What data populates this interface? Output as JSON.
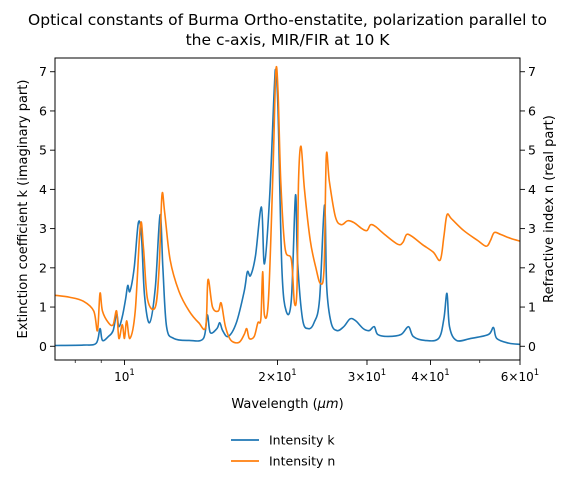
{
  "chart_data": {
    "type": "line",
    "title": "Optical constants of Burma Ortho-enstatite, polarization parallel to the c-axis, MIR/FIR at 10 K",
    "title_lines": [
      "Optical constants of Burma Ortho-enstatite, polarization parallel to",
      "the c-axis, MIR/FIR at 10 K"
    ],
    "xlabel": "Wavelength (μm)",
    "xlabel_base": "Wavelength (",
    "xlabel_mu": "μm",
    "xlabel_close": ")",
    "ylabel_left": "Extinction coefficient k (imaginary part)",
    "ylabel_right": "Refractive index n (real part)",
    "x_scale": "log",
    "xlim": [
      7.3,
      60
    ],
    "ylim_left": [
      -0.35,
      7.35
    ],
    "ylim_right": [
      -0.35,
      7.35
    ],
    "x_ticks": [
      {
        "value": 10,
        "base": "10",
        "exp": "1",
        "mant": ""
      },
      {
        "value": 20,
        "base": "10",
        "exp": "1",
        "mant": "2×"
      },
      {
        "value": 30,
        "base": "10",
        "exp": "1",
        "mant": "3×"
      },
      {
        "value": 40,
        "base": "10",
        "exp": "1",
        "mant": "4×"
      },
      {
        "value": 60,
        "base": "10",
        "exp": "1",
        "mant": "6×"
      }
    ],
    "x_minor_ticks": [
      8,
      9,
      50
    ],
    "y_ticks_left": [
      0,
      1,
      2,
      3,
      4,
      5,
      6,
      7
    ],
    "y_ticks_right": [
      0,
      1,
      2,
      3,
      4,
      5,
      6,
      7
    ],
    "grid": false,
    "legend_placement": "bottom-center below axes",
    "series": [
      {
        "name": "Intensity k",
        "color": "#1f77b4",
        "axis": "left",
        "points": [
          [
            7.3,
            0.02
          ],
          [
            8.3,
            0.03
          ],
          [
            8.8,
            0.08
          ],
          [
            8.95,
            0.45
          ],
          [
            9.05,
            0.15
          ],
          [
            9.3,
            0.25
          ],
          [
            9.5,
            0.4
          ],
          [
            9.65,
            0.82
          ],
          [
            9.75,
            0.5
          ],
          [
            9.9,
            0.75
          ],
          [
            10.05,
            1.2
          ],
          [
            10.15,
            1.55
          ],
          [
            10.25,
            1.4
          ],
          [
            10.45,
            2.0
          ],
          [
            10.65,
            3.15
          ],
          [
            10.8,
            2.8
          ],
          [
            10.95,
            1.3
          ],
          [
            11.2,
            0.6
          ],
          [
            11.5,
            1.5
          ],
          [
            11.75,
            3.35
          ],
          [
            11.9,
            2.0
          ],
          [
            12.1,
            0.5
          ],
          [
            12.5,
            0.2
          ],
          [
            13.4,
            0.15
          ],
          [
            14.3,
            0.2
          ],
          [
            14.55,
            0.8
          ],
          [
            14.75,
            0.35
          ],
          [
            15.2,
            0.45
          ],
          [
            15.4,
            0.6
          ],
          [
            15.6,
            0.4
          ],
          [
            16.0,
            0.25
          ],
          [
            16.6,
            0.6
          ],
          [
            17.2,
            1.4
          ],
          [
            17.45,
            1.9
          ],
          [
            17.7,
            1.8
          ],
          [
            18.1,
            2.3
          ],
          [
            18.6,
            3.55
          ],
          [
            18.85,
            2.1
          ],
          [
            19.3,
            3.8
          ],
          [
            19.7,
            6.5
          ],
          [
            19.85,
            7.03
          ],
          [
            20.05,
            6.0
          ],
          [
            20.4,
            2.0
          ],
          [
            20.8,
            0.9
          ],
          [
            21.3,
            1.2
          ],
          [
            21.7,
            3.85
          ],
          [
            21.9,
            2.2
          ],
          [
            22.4,
            0.7
          ],
          [
            23.0,
            0.45
          ],
          [
            23.6,
            0.6
          ],
          [
            24.2,
            1.2
          ],
          [
            24.75,
            3.6
          ],
          [
            25.0,
            1.5
          ],
          [
            25.5,
            0.6
          ],
          [
            26.2,
            0.4
          ],
          [
            27.0,
            0.5
          ],
          [
            27.8,
            0.7
          ],
          [
            28.5,
            0.65
          ],
          [
            29.5,
            0.45
          ],
          [
            30.3,
            0.4
          ],
          [
            31.0,
            0.5
          ],
          [
            31.5,
            0.3
          ],
          [
            33.0,
            0.25
          ],
          [
            35.0,
            0.3
          ],
          [
            36.2,
            0.5
          ],
          [
            37.0,
            0.25
          ],
          [
            39.0,
            0.15
          ],
          [
            41.5,
            0.2
          ],
          [
            42.5,
            0.7
          ],
          [
            43.1,
            1.35
          ],
          [
            43.6,
            0.5
          ],
          [
            45.0,
            0.15
          ],
          [
            48.0,
            0.2
          ],
          [
            52.0,
            0.3
          ],
          [
            53.2,
            0.48
          ],
          [
            54.0,
            0.2
          ],
          [
            57.0,
            0.08
          ],
          [
            60.0,
            0.05
          ]
        ]
      },
      {
        "name": "Intensity n",
        "color": "#ff7f0e",
        "axis": "right",
        "points": [
          [
            7.3,
            1.3
          ],
          [
            7.8,
            1.25
          ],
          [
            8.3,
            1.15
          ],
          [
            8.7,
            0.9
          ],
          [
            8.85,
            0.4
          ],
          [
            8.95,
            1.35
          ],
          [
            9.05,
            0.9
          ],
          [
            9.3,
            0.6
          ],
          [
            9.5,
            0.55
          ],
          [
            9.65,
            0.9
          ],
          [
            9.75,
            0.2
          ],
          [
            9.9,
            0.55
          ],
          [
            10.0,
            0.2
          ],
          [
            10.1,
            0.65
          ],
          [
            10.25,
            0.2
          ],
          [
            10.5,
            0.9
          ],
          [
            10.75,
            3.1
          ],
          [
            10.9,
            2.5
          ],
          [
            11.1,
            1.2
          ],
          [
            11.5,
            1.0
          ],
          [
            11.7,
            2.0
          ],
          [
            11.85,
            3.85
          ],
          [
            12.0,
            3.4
          ],
          [
            12.3,
            2.2
          ],
          [
            12.8,
            1.4
          ],
          [
            13.4,
            0.9
          ],
          [
            14.0,
            0.6
          ],
          [
            14.45,
            0.5
          ],
          [
            14.6,
            1.7
          ],
          [
            14.9,
            1.0
          ],
          [
            15.3,
            0.9
          ],
          [
            15.5,
            1.1
          ],
          [
            15.8,
            0.5
          ],
          [
            16.2,
            0.15
          ],
          [
            16.8,
            0.1
          ],
          [
            17.2,
            0.3
          ],
          [
            17.4,
            0.45
          ],
          [
            17.6,
            0.2
          ],
          [
            18.0,
            0.25
          ],
          [
            18.3,
            0.6
          ],
          [
            18.55,
            0.7
          ],
          [
            18.7,
            1.9
          ],
          [
            18.85,
            0.8
          ],
          [
            19.2,
            1.2
          ],
          [
            19.6,
            4.5
          ],
          [
            19.85,
            7.0
          ],
          [
            20.05,
            6.5
          ],
          [
            20.3,
            4.2
          ],
          [
            20.7,
            2.5
          ],
          [
            21.3,
            2.2
          ],
          [
            21.6,
            1.1
          ],
          [
            21.85,
            1.5
          ],
          [
            22.0,
            4.2
          ],
          [
            22.25,
            5.1
          ],
          [
            22.6,
            4.0
          ],
          [
            23.2,
            2.7
          ],
          [
            23.8,
            2.0
          ],
          [
            24.3,
            1.6
          ],
          [
            24.7,
            2.0
          ],
          [
            24.95,
            4.85
          ],
          [
            25.3,
            4.2
          ],
          [
            26.0,
            3.3
          ],
          [
            26.7,
            3.1
          ],
          [
            27.5,
            3.2
          ],
          [
            28.3,
            3.15
          ],
          [
            29.3,
            3.0
          ],
          [
            30.0,
            2.95
          ],
          [
            30.5,
            3.1
          ],
          [
            31.2,
            3.05
          ],
          [
            32.5,
            2.85
          ],
          [
            34.5,
            2.6
          ],
          [
            35.3,
            2.65
          ],
          [
            35.9,
            2.85
          ],
          [
            36.8,
            2.8
          ],
          [
            38.5,
            2.6
          ],
          [
            40.5,
            2.4
          ],
          [
            41.8,
            2.2
          ],
          [
            42.5,
            2.8
          ],
          [
            43.1,
            3.35
          ],
          [
            44.0,
            3.25
          ],
          [
            46.5,
            2.95
          ],
          [
            49.5,
            2.7
          ],
          [
            51.5,
            2.55
          ],
          [
            52.5,
            2.7
          ],
          [
            53.4,
            2.9
          ],
          [
            55.0,
            2.85
          ],
          [
            57.5,
            2.75
          ],
          [
            60.0,
            2.68
          ]
        ]
      }
    ]
  }
}
